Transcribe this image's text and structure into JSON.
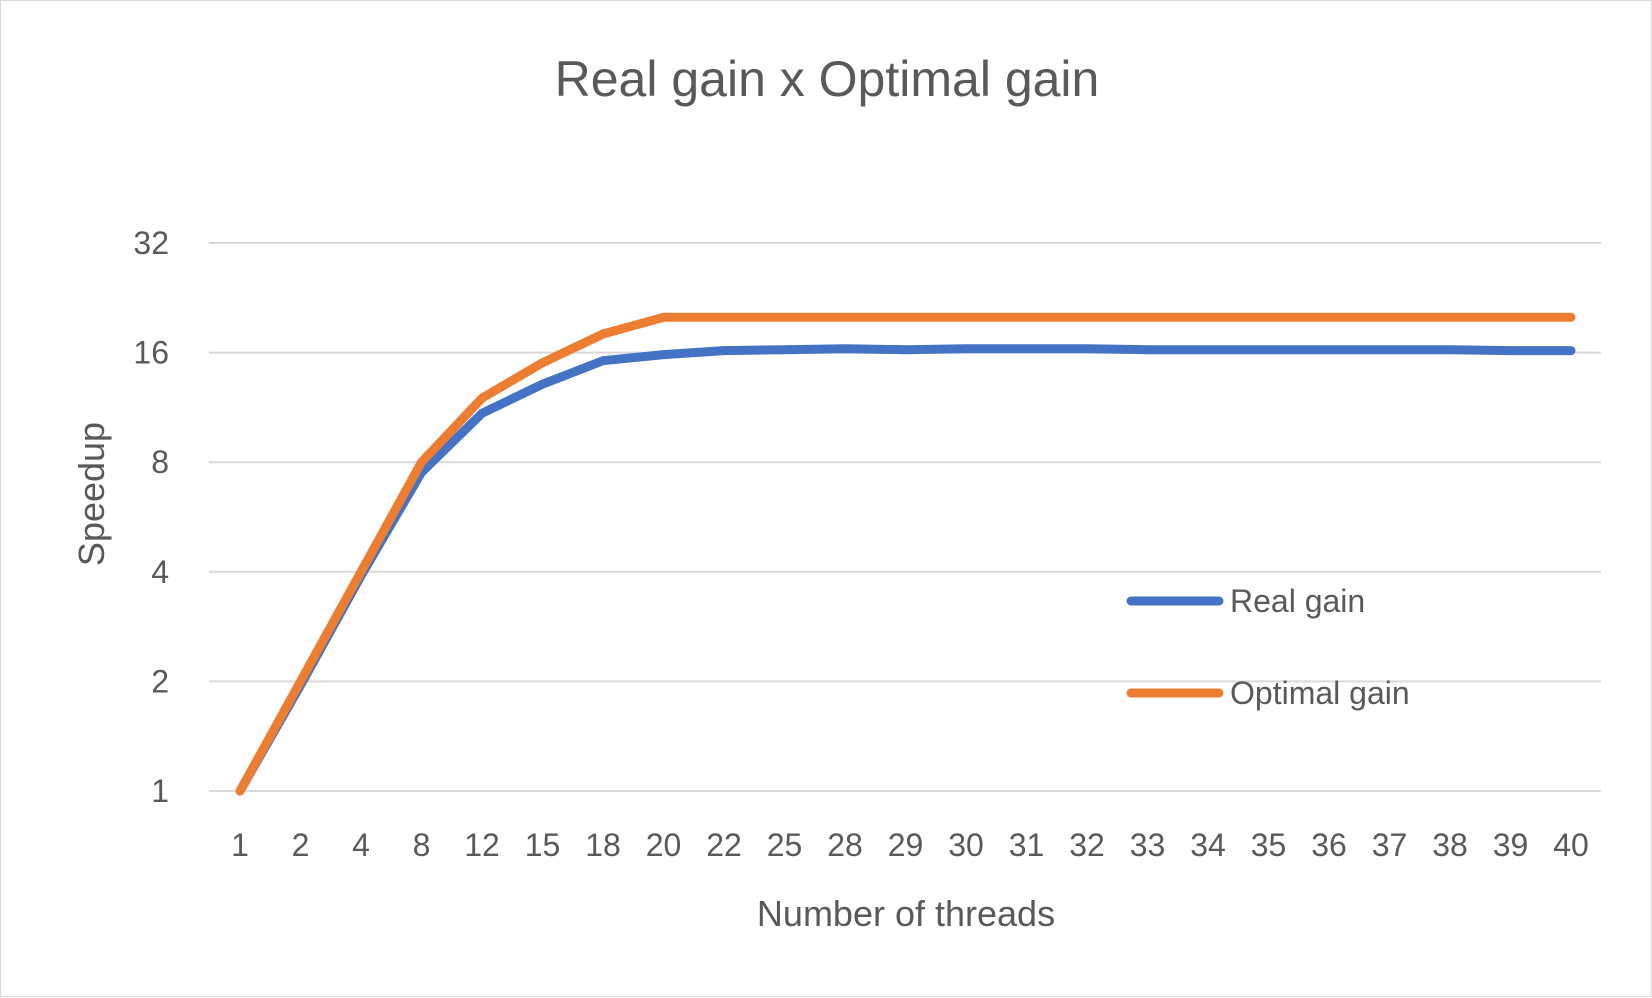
{
  "chart_data": {
    "type": "line",
    "title": "Real gain x Optimal gain",
    "xlabel": "Number of threads",
    "ylabel": "Speedup",
    "y_scale": "log2",
    "ylim": [
      1,
      32
    ],
    "y_ticks": [
      1,
      2,
      4,
      8,
      16,
      32
    ],
    "grid": true,
    "legend_position": "center-right",
    "categories": [
      "1",
      "2",
      "4",
      "8",
      "12",
      "15",
      "18",
      "20",
      "22",
      "25",
      "28",
      "29",
      "30",
      "31",
      "32",
      "33",
      "34",
      "35",
      "36",
      "37",
      "38",
      "39",
      "40"
    ],
    "series": [
      {
        "name": "Real gain",
        "color": "#4472C4",
        "values": [
          1,
          1.95,
          3.9,
          7.5,
          10.9,
          13.1,
          15.2,
          15.8,
          16.2,
          16.3,
          16.4,
          16.3,
          16.4,
          16.4,
          16.4,
          16.3,
          16.3,
          16.3,
          16.3,
          16.3,
          16.3,
          16.2,
          16.2
        ]
      },
      {
        "name": "Optimal gain",
        "color": "#ED7D31",
        "values": [
          1,
          2,
          4,
          8,
          12,
          15,
          18,
          20,
          20,
          20,
          20,
          20,
          20,
          20,
          20,
          20,
          20,
          20,
          20,
          20,
          20,
          20,
          20
        ]
      }
    ]
  }
}
